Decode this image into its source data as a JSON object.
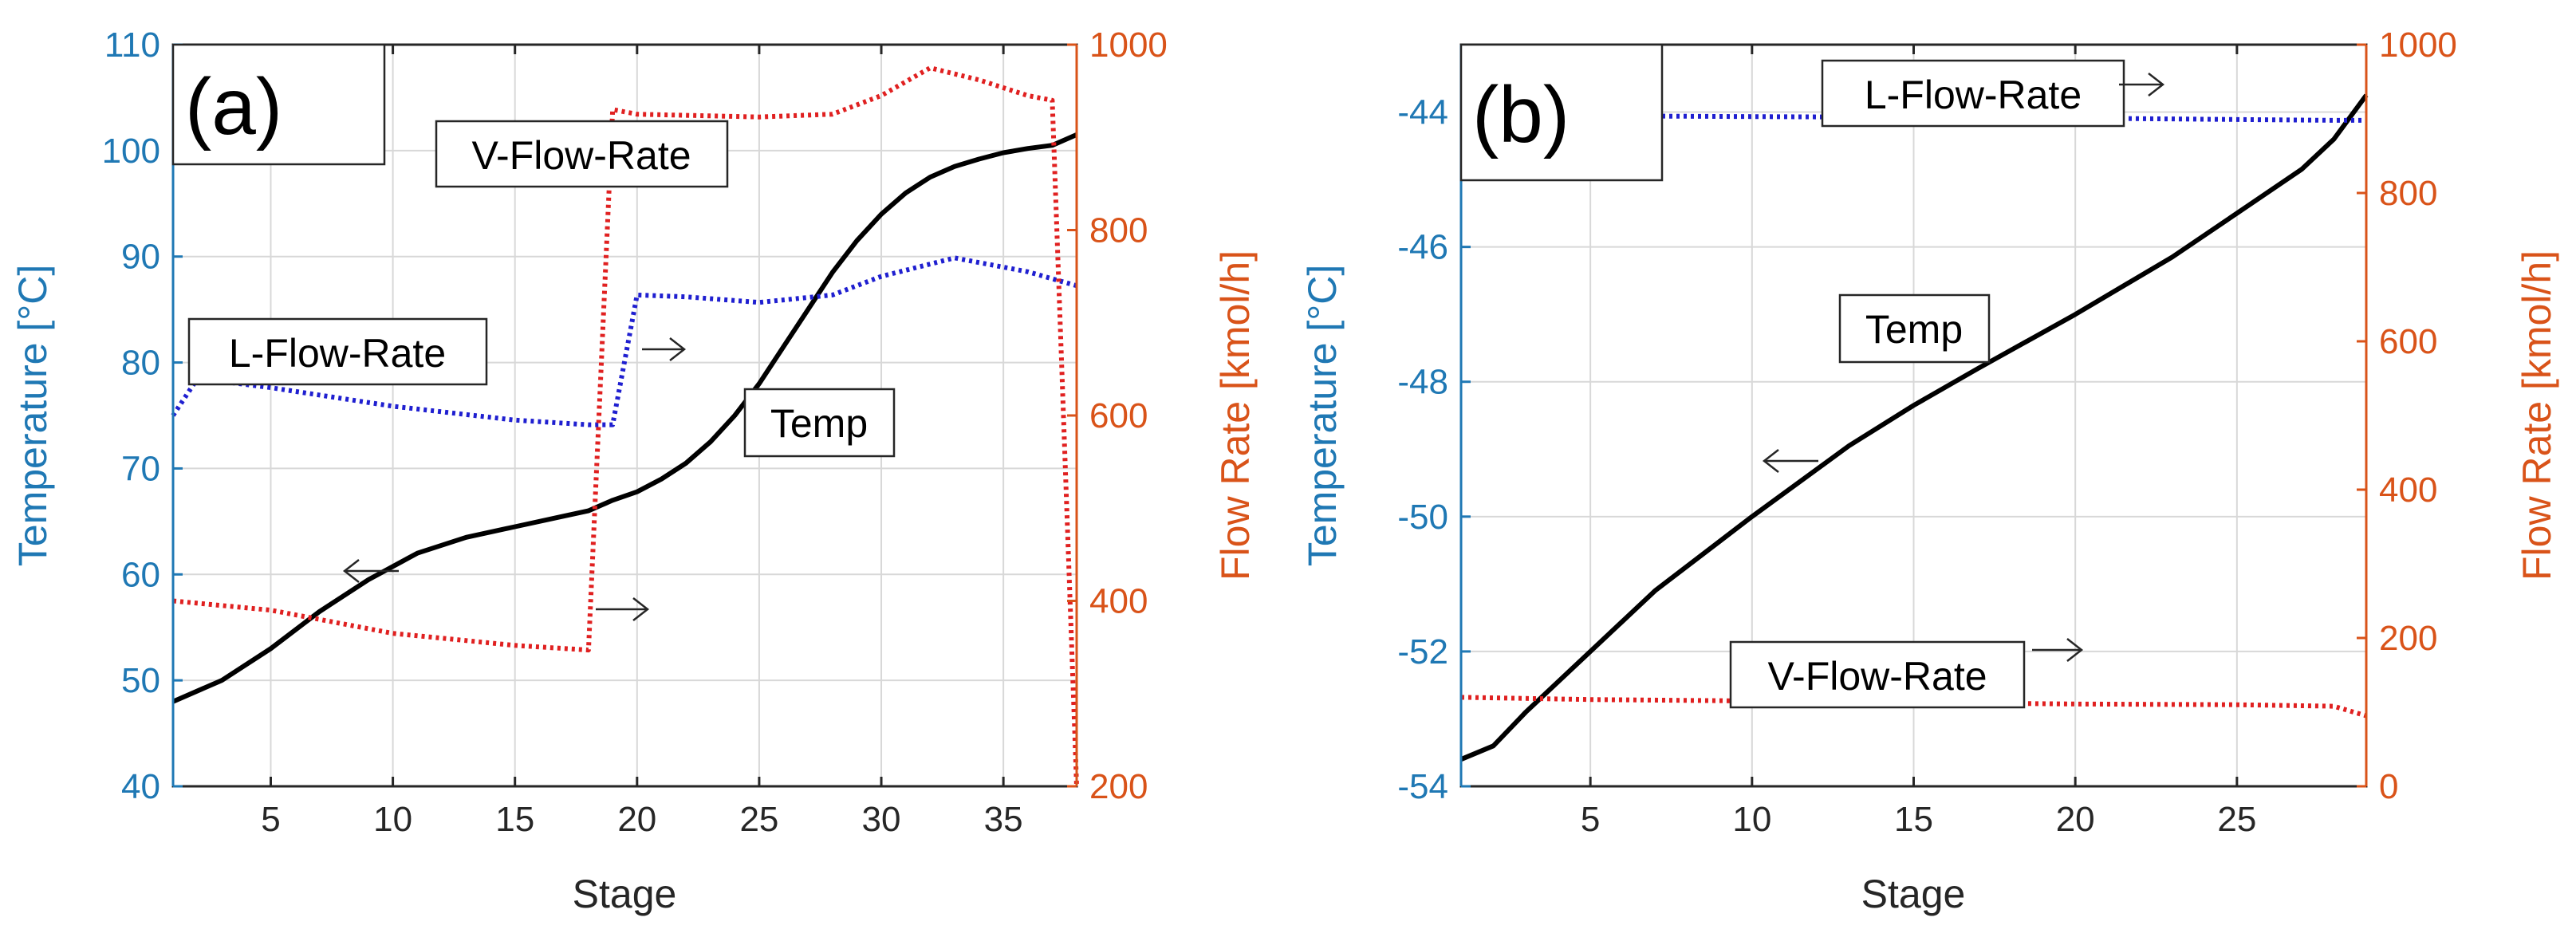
{
  "figure": {
    "panels": [
      "(a)",
      "(b)"
    ]
  },
  "colors": {
    "left_axis": "#1f78b4",
    "right_axis": "#d95319",
    "temp_line": "#000000",
    "liquid_line": "#1f1fd0",
    "vapor_line": "#e02020",
    "grid": "#d8d8d8"
  },
  "chart_data": [
    {
      "panel_label": "(a)",
      "type": "line",
      "xlabel": "Stage",
      "ylabel_left": "Temperature [°C]",
      "ylabel_right": "Flow Rate [kmol/h]",
      "xlim": [
        1,
        38
      ],
      "ylim_left": [
        40,
        110
      ],
      "ylim_right": [
        200,
        1000
      ],
      "xticks": [
        5,
        10,
        15,
        20,
        25,
        30,
        35
      ],
      "yticks_left": [
        40,
        50,
        60,
        70,
        80,
        90,
        100,
        110
      ],
      "yticks_right": [
        200,
        400,
        600,
        800,
        1000
      ],
      "grid": true,
      "series": [
        {
          "name": "Temp",
          "axis": "left",
          "style": "solid",
          "x": [
            1,
            3,
            5,
            7,
            9,
            11,
            13,
            15,
            17,
            18,
            19,
            20,
            21,
            22,
            23,
            24,
            25,
            26,
            27,
            28,
            29,
            30,
            31,
            32,
            33,
            34,
            35,
            36,
            37,
            38
          ],
          "y": [
            48,
            50,
            53,
            56.5,
            59.5,
            62,
            63.5,
            64.5,
            65.5,
            66,
            67,
            67.8,
            69,
            70.5,
            72.5,
            75,
            78,
            81.5,
            85,
            88.5,
            91.5,
            94,
            96,
            97.5,
            98.5,
            99.2,
            99.8,
            100.2,
            100.5,
            101.5
          ]
        },
        {
          "name": "L-Flow-Rate",
          "axis": "right",
          "style": "dotted",
          "x": [
            1,
            2,
            5,
            10,
            15,
            18,
            19,
            20,
            22,
            25,
            28,
            30,
            33,
            36,
            38
          ],
          "y": [
            600,
            640,
            630,
            610,
            595,
            590,
            590,
            730,
            728,
            722,
            730,
            750,
            770,
            755,
            740
          ]
        },
        {
          "name": "V-Flow-Rate",
          "axis": "right",
          "style": "dotted",
          "x": [
            1,
            5,
            10,
            15,
            18,
            18.01,
            19,
            20,
            25,
            28,
            30,
            32,
            34,
            36,
            37,
            38
          ],
          "y": [
            400,
            390,
            365,
            352,
            347,
            347,
            930,
            925,
            922,
            925,
            945,
            975,
            962,
            945,
            940,
            200
          ]
        }
      ],
      "annotations": [
        {
          "text": "V-Flow-Rate",
          "boxed": true,
          "arrow": "→ right axis"
        },
        {
          "text": "L-Flow-Rate",
          "boxed": true,
          "arrow": "→ right axis"
        },
        {
          "text": "Temp",
          "boxed": true,
          "arrow": "← left axis"
        }
      ]
    },
    {
      "panel_label": "(b)",
      "type": "line",
      "xlabel": "Stage",
      "ylabel_left": "Temperature [°C]",
      "ylabel_right": "Flow Rate [kmol/h]",
      "xlim": [
        1,
        29
      ],
      "ylim_left": [
        -54,
        -43
      ],
      "ylim_right": [
        0,
        1000
      ],
      "xticks": [
        5,
        10,
        15,
        20,
        25
      ],
      "yticks_left": [
        -54,
        -52,
        -50,
        -48,
        -46,
        -44
      ],
      "yticks_right": [
        0,
        200,
        400,
        600,
        800,
        1000
      ],
      "grid": true,
      "series": [
        {
          "name": "Temp",
          "axis": "left",
          "style": "solid",
          "x": [
            1,
            2,
            3,
            5,
            7,
            10,
            13,
            15,
            17,
            20,
            23,
            25,
            27,
            28,
            29
          ],
          "y": [
            -53.6,
            -53.4,
            -52.9,
            -52.0,
            -51.1,
            -50.0,
            -48.95,
            -48.35,
            -47.8,
            -47.0,
            -46.15,
            -45.5,
            -44.85,
            -44.4,
            -43.75
          ]
        },
        {
          "name": "L-Flow-Rate",
          "axis": "right",
          "style": "dotted",
          "x": [
            1,
            10,
            20,
            28,
            29
          ],
          "y": [
            905,
            903,
            901,
            898,
            898
          ]
        },
        {
          "name": "V-Flow-Rate",
          "axis": "right",
          "style": "dotted",
          "x": [
            1,
            5,
            10,
            15,
            20,
            25,
            28,
            29
          ],
          "y": [
            120,
            117,
            115,
            113,
            111,
            110,
            108,
            95
          ]
        }
      ],
      "annotations": [
        {
          "text": "L-Flow-Rate",
          "boxed": true,
          "arrow": "→ right axis"
        },
        {
          "text": "Temp",
          "boxed": true,
          "arrow": "← left axis"
        },
        {
          "text": "V-Flow-Rate",
          "boxed": true,
          "arrow": "→ right axis"
        }
      ]
    }
  ]
}
